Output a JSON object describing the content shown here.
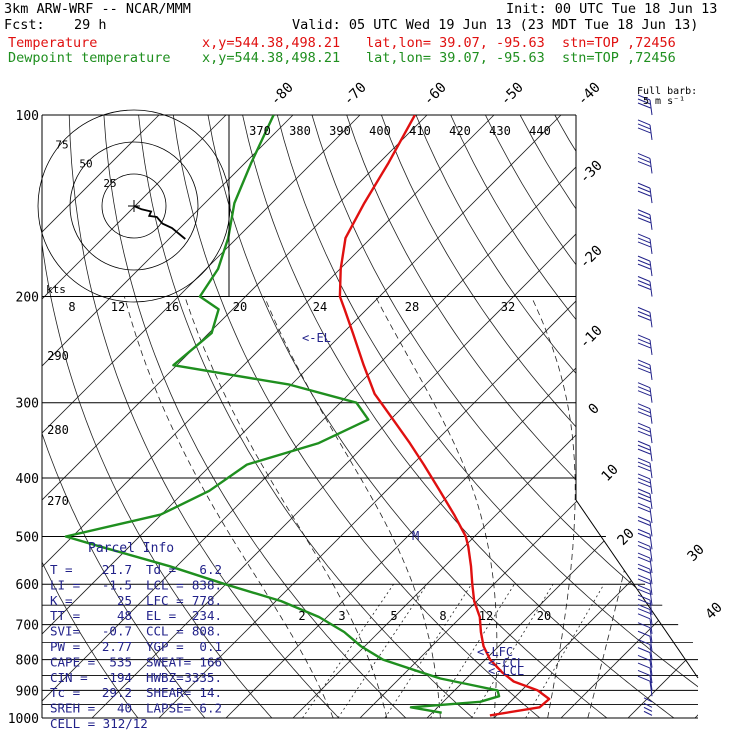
{
  "header": {
    "model": "3km ARW-WRF -- NCAR/MMM",
    "init": "Init: 00 UTC Tue 18 Jun 13",
    "fcst_label": "Fcst:",
    "fcst_value": "29 h",
    "valid": "Valid: 05 UTC Wed 19 Jun 13 (23 MDT Tue 18 Jun 13)"
  },
  "legend": [
    {
      "name": "Temperature",
      "xy": "x,y=544.38,498.21",
      "latlon": "lat,lon= 39.07, -95.63",
      "stn": "stn=TOP ,72456",
      "color": "#e01010"
    },
    {
      "name": "Dewpoint temperature",
      "xy": "x,y=544.38,498.21",
      "latlon": "lat,lon= 39.07, -95.63",
      "stn": "stn=TOP ,72456",
      "color": "#1f8f1f"
    }
  ],
  "barb_key": {
    "line1": "Full barb:",
    "line2": "5 m s⁻¹"
  },
  "parcel_title": "Parcel Info",
  "parcel_rows": [
    [
      "T  =",
      "21.7",
      "Td =",
      "6.2"
    ],
    [
      "LI =",
      "-1.5",
      "LCL =",
      "838."
    ],
    [
      "K  =",
      "25",
      "LFC =",
      "778."
    ],
    [
      "TT =",
      "48",
      "EL =",
      "234."
    ],
    [
      "SVI=",
      "-0.7",
      "CCL =",
      "808."
    ],
    [
      "PW =",
      "2.77",
      "YGP =",
      "0.1"
    ],
    [
      "CAPE =",
      "535",
      "SWEAT=",
      "166"
    ],
    [
      "CIN =",
      "-194",
      "HWBZ=",
      "3335."
    ],
    [
      "Tc =",
      "29.2",
      "SHEAR=",
      "14."
    ],
    [
      "SREH =",
      "40",
      "LAPSE=",
      "6.2"
    ],
    [
      "CELL = 312/12",
      "",
      "",
      ""
    ]
  ],
  "hodograph": {
    "rings": [
      "25",
      "50",
      "75"
    ],
    "units": "kts"
  },
  "level_labels": {
    "el": "<-EL",
    "lfc": "<-LFC",
    "lcl": "<-LCL",
    "ccl": "<-CCL",
    "m": "M"
  },
  "chart_data": {
    "type": "skew-T",
    "pressure_axis": {
      "ticks": [
        100,
        200,
        300,
        400,
        500,
        600,
        700,
        800,
        900,
        1000
      ],
      "range": [
        1000,
        100
      ],
      "scale": "log"
    },
    "isotherm_labels": [
      "-80",
      "-70",
      "-60",
      "-50",
      "-40",
      "-30",
      "-20",
      "-10",
      "0",
      "10",
      "20",
      "30",
      "40"
    ],
    "theta_labels": [
      "370",
      "380",
      "390",
      "400",
      "410",
      "420",
      "430",
      "440"
    ],
    "mixing_ratio_top": [
      "8",
      "12",
      "16",
      "20",
      "24",
      "28",
      "32"
    ],
    "mixing_ratio_bottom": [
      "2",
      "3",
      "5",
      "8",
      "12",
      "20"
    ],
    "dry_adiabat_labels": [
      "290",
      "280",
      "270"
    ],
    "series": [
      {
        "name": "Temperature",
        "color": "#e01010",
        "pressure": [
          990,
          960,
          930,
          900,
          870,
          840,
          800,
          760,
          720,
          680,
          640,
          600,
          560,
          520,
          500,
          460,
          420,
          380,
          350,
          320,
          290,
          260,
          230,
          210,
          200,
          180,
          160,
          140,
          120,
          100
        ],
        "temp": [
          19,
          25.2,
          25.4,
          22.4,
          17.5,
          14.4,
          10.7,
          7.7,
          5.2,
          2.8,
          -0.4,
          -3.2,
          -6.1,
          -9.4,
          -11.3,
          -16.3,
          -22,
          -28.3,
          -33.6,
          -39.6,
          -46.2,
          -52.1,
          -58.5,
          -63.3,
          -65.9,
          -69.9,
          -73.8,
          -76.2,
          -78.6,
          -81.8
        ]
      },
      {
        "name": "Dewpoint temperature",
        "color": "#1f8f1f",
        "pressure": [
          980,
          960,
          940,
          920,
          900,
          880,
          860,
          840,
          800,
          760,
          720,
          680,
          640,
          600,
          560,
          520,
          500,
          460,
          420,
          380,
          350,
          320,
          300,
          280,
          260,
          230,
          210,
          200,
          180,
          160,
          140,
          120,
          100
        ],
        "temp": [
          11.4,
          6,
          15.5,
          17.5,
          16.4,
          11.3,
          6.1,
          2.3,
          -5.3,
          -10.6,
          -15.2,
          -21.2,
          -29.2,
          -40.1,
          -51.1,
          -64.2,
          -71,
          -60.1,
          -56.4,
          -54.7,
          -47.2,
          -43.3,
          -47.6,
          -60.3,
          -80.5,
          -79.6,
          -82.1,
          -86.8,
          -88.2,
          -91.3,
          -95.6,
          -99.1,
          -102.9
        ]
      }
    ],
    "hodograph_trace": [
      [
        0,
        0
      ],
      [
        4,
        3
      ],
      [
        9,
        5
      ],
      [
        8,
        9
      ],
      [
        12,
        10
      ],
      [
        15,
        16
      ],
      [
        20,
        20
      ],
      [
        27,
        30
      ]
    ],
    "wind_profile_pressure": [
      990,
      975,
      960,
      940,
      920,
      900,
      875,
      850,
      825,
      800,
      775,
      750,
      725,
      700,
      675,
      650,
      625,
      600,
      575,
      550,
      525,
      500,
      475,
      450,
      425,
      400,
      375,
      350,
      325,
      300,
      275,
      250,
      225,
      200,
      185,
      170,
      155,
      140,
      125,
      110,
      100
    ]
  }
}
